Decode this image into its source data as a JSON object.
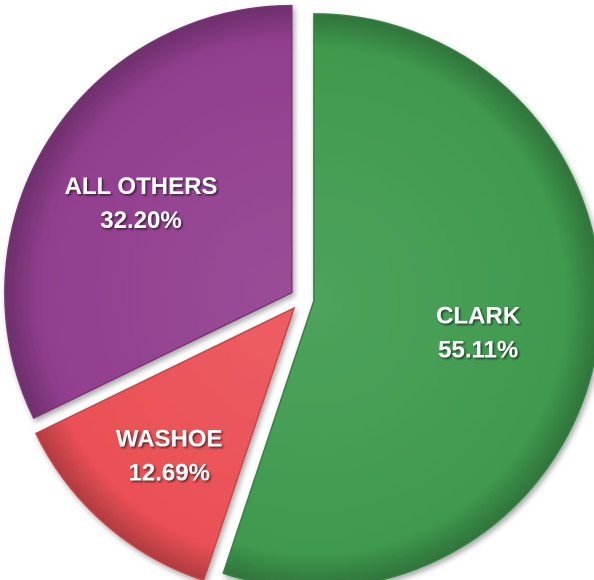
{
  "chart_data": {
    "type": "pie",
    "title": "",
    "start": "12 o'clock",
    "direction": "clockwise",
    "slices": [
      {
        "label": "CLARK",
        "value": 55.11,
        "value_label": "55.11%",
        "color": "#3f9a4e"
      },
      {
        "label": "WASHOE",
        "value": 12.69,
        "value_label": "12.69%",
        "color": "#ea5055"
      },
      {
        "label": "ALL OTHERS",
        "value": 32.2,
        "value_label": "32.20%",
        "color": "#913e8e"
      }
    ],
    "exploded": true,
    "label_color": "#ffffff"
  }
}
